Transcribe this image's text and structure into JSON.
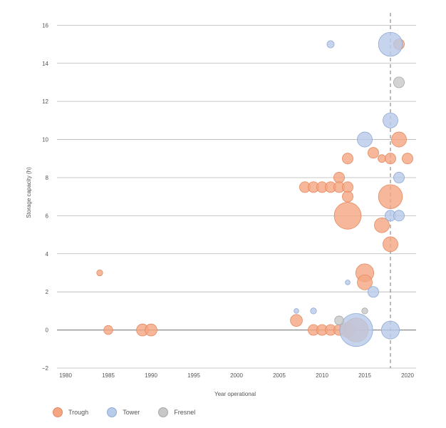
{
  "chart_data": {
    "type": "scatter",
    "title": "",
    "xlabel": "Year operational",
    "ylabel": "Storage capacity (h)",
    "xlim": [
      1979,
      2021
    ],
    "ylim": [
      -2,
      16.5
    ],
    "xticks": [
      1980,
      1985,
      1990,
      1995,
      2000,
      2005,
      2010,
      2015,
      2020
    ],
    "yticks": [
      -2,
      0,
      2,
      4,
      6,
      8,
      10,
      12,
      14,
      16
    ],
    "grid": true,
    "reference_line_x": 2018,
    "legend_position": "bottom-left",
    "series": [
      {
        "name": "Trough",
        "color": "#f4a582",
        "stroke": "#e58a60",
        "points": [
          {
            "x": 1984,
            "y": 3,
            "size": 1
          },
          {
            "x": 1985,
            "y": 0,
            "size": 1.5
          },
          {
            "x": 1989,
            "y": 0,
            "size": 2
          },
          {
            "x": 1990,
            "y": 0,
            "size": 2
          },
          {
            "x": 2007,
            "y": 0.5,
            "size": 2
          },
          {
            "x": 2008,
            "y": 7.5,
            "size": 1.8
          },
          {
            "x": 2009,
            "y": 7.5,
            "size": 1.8
          },
          {
            "x": 2009,
            "y": 0,
            "size": 1.8
          },
          {
            "x": 2010,
            "y": 7.5,
            "size": 1.8
          },
          {
            "x": 2010,
            "y": 0,
            "size": 1.8
          },
          {
            "x": 2011,
            "y": 7.5,
            "size": 1.8
          },
          {
            "x": 2011,
            "y": 0,
            "size": 1.8
          },
          {
            "x": 2012,
            "y": 8,
            "size": 1.8
          },
          {
            "x": 2012,
            "y": 7.5,
            "size": 1.8
          },
          {
            "x": 2012,
            "y": 0,
            "size": 1.8
          },
          {
            "x": 2013,
            "y": 9,
            "size": 1.8
          },
          {
            "x": 2013,
            "y": 7.5,
            "size": 1.8
          },
          {
            "x": 2013,
            "y": 7,
            "size": 1.8
          },
          {
            "x": 2013,
            "y": 6,
            "size": 4.5
          },
          {
            "x": 2013,
            "y": 0,
            "size": 2.5
          },
          {
            "x": 2014,
            "y": 0,
            "size": 4
          },
          {
            "x": 2015,
            "y": 3,
            "size": 3
          },
          {
            "x": 2015,
            "y": 2.5,
            "size": 2.5
          },
          {
            "x": 2016,
            "y": 9.3,
            "size": 1.8
          },
          {
            "x": 2017,
            "y": 9,
            "size": 1.3
          },
          {
            "x": 2017,
            "y": 5.5,
            "size": 2.5
          },
          {
            "x": 2018,
            "y": 9,
            "size": 1.8
          },
          {
            "x": 2018,
            "y": 7,
            "size": 4
          },
          {
            "x": 2018,
            "y": 4.5,
            "size": 2.5
          },
          {
            "x": 2019,
            "y": 15,
            "size": 1.8
          },
          {
            "x": 2019,
            "y": 10,
            "size": 2.5
          },
          {
            "x": 2020,
            "y": 9,
            "size": 1.8
          }
        ]
      },
      {
        "name": "Tower",
        "color": "#b8cbe8",
        "stroke": "#8ea9d6",
        "points": [
          {
            "x": 2007,
            "y": 1,
            "size": 0.8
          },
          {
            "x": 2009,
            "y": 1,
            "size": 1
          },
          {
            "x": 2011,
            "y": 15,
            "size": 1.2
          },
          {
            "x": 2013,
            "y": 2.5,
            "size": 0.8
          },
          {
            "x": 2014,
            "y": 0,
            "size": 5.5
          },
          {
            "x": 2015,
            "y": 10,
            "size": 2.5
          },
          {
            "x": 2016,
            "y": 2,
            "size": 1.8
          },
          {
            "x": 2018,
            "y": 15,
            "size": 4
          },
          {
            "x": 2018,
            "y": 11,
            "size": 2.5
          },
          {
            "x": 2018,
            "y": 6,
            "size": 1.8
          },
          {
            "x": 2018,
            "y": 0,
            "size": 3
          },
          {
            "x": 2019,
            "y": 8,
            "size": 1.8
          },
          {
            "x": 2019,
            "y": 6,
            "size": 1.8
          }
        ]
      },
      {
        "name": "Fresnel",
        "color": "#c8c8c8",
        "stroke": "#a6a6a6",
        "points": [
          {
            "x": 2012,
            "y": 0.5,
            "size": 1.5
          },
          {
            "x": 2015,
            "y": 1,
            "size": 1
          },
          {
            "x": 2019,
            "y": 13,
            "size": 1.8
          }
        ]
      }
    ]
  },
  "legend": {
    "items": [
      {
        "label": "Trough",
        "color": "#f4a582",
        "stroke": "#e58a60"
      },
      {
        "label": "Tower",
        "color": "#b8cbe8",
        "stroke": "#8ea9d6"
      },
      {
        "label": "Fresnel",
        "color": "#c8c8c8",
        "stroke": "#a6a6a6"
      }
    ]
  }
}
